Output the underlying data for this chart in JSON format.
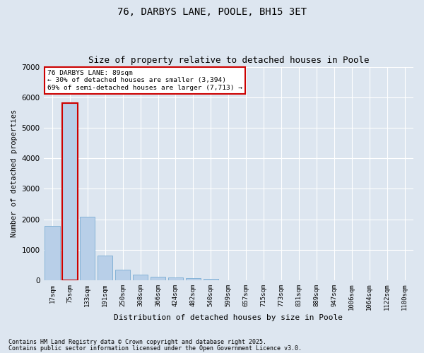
{
  "title1": "76, DARBYS LANE, POOLE, BH15 3ET",
  "title2": "Size of property relative to detached houses in Poole",
  "xlabel": "Distribution of detached houses by size in Poole",
  "ylabel": "Number of detached properties",
  "categories": [
    "17sqm",
    "75sqm",
    "133sqm",
    "191sqm",
    "250sqm",
    "308sqm",
    "366sqm",
    "424sqm",
    "482sqm",
    "540sqm",
    "599sqm",
    "657sqm",
    "715sqm",
    "773sqm",
    "831sqm",
    "889sqm",
    "947sqm",
    "1006sqm",
    "1064sqm",
    "1122sqm",
    "1180sqm"
  ],
  "values": [
    1780,
    5820,
    2080,
    820,
    340,
    185,
    110,
    95,
    80,
    55,
    0,
    0,
    0,
    0,
    0,
    0,
    0,
    0,
    0,
    0,
    0
  ],
  "bar_color": "#b8cfe8",
  "bar_edge_color": "#7aadd4",
  "highlight_bar_index": 1,
  "highlight_edge_color": "#cc0000",
  "ylim": [
    0,
    7000
  ],
  "yticks": [
    0,
    1000,
    2000,
    3000,
    4000,
    5000,
    6000,
    7000
  ],
  "annotation_title": "76 DARBYS LANE: 89sqm",
  "annotation_line1": "← 30% of detached houses are smaller (3,394)",
  "annotation_line2": "69% of semi-detached houses are larger (7,713) →",
  "annotation_box_color": "#ffffff",
  "annotation_box_edge": "#cc0000",
  "footer1": "Contains HM Land Registry data © Crown copyright and database right 2025.",
  "footer2": "Contains public sector information licensed under the Open Government Licence v3.0.",
  "bg_color": "#dde6f0",
  "plot_bg_color": "#dde6f0",
  "grid_color": "#ffffff",
  "title_fontsize": 10,
  "subtitle_fontsize": 9
}
